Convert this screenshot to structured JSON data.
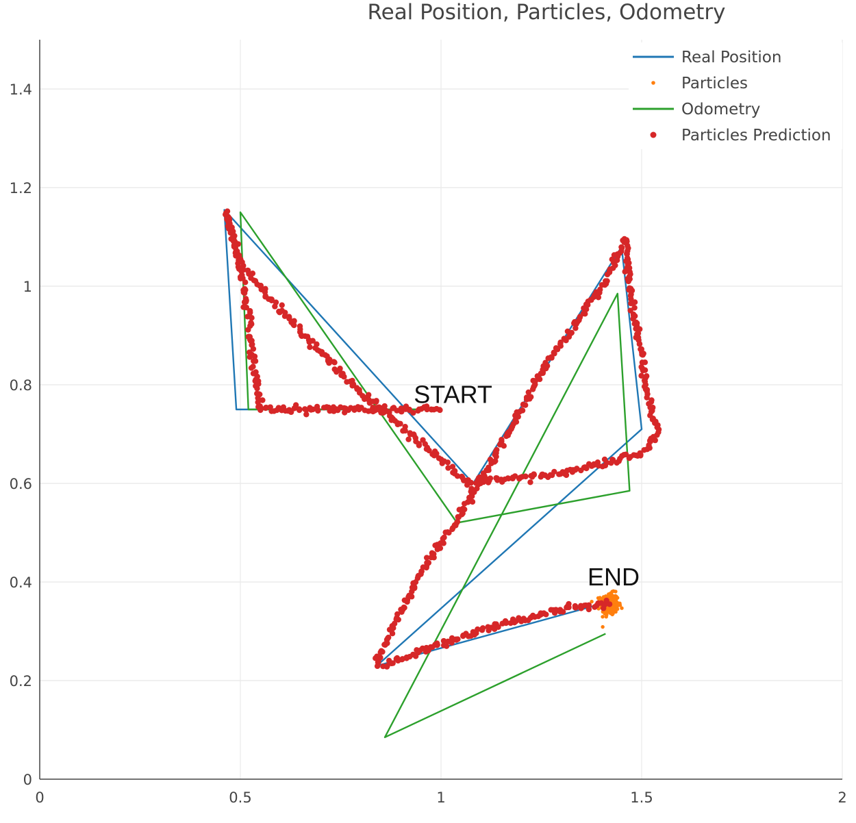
{
  "chart_data": {
    "type": "scatter",
    "title": "Real Position, Particles, Odometry",
    "xlabel": "",
    "ylabel": "",
    "xlim": [
      0,
      2
    ],
    "ylim": [
      0,
      1.5
    ],
    "x_ticks": [
      "0",
      "0.5",
      "1",
      "1.5",
      "2"
    ],
    "y_ticks": [
      "0",
      "0.2",
      "0.4",
      "0.6",
      "0.8",
      "1",
      "1.2",
      "1.4"
    ],
    "grid": true,
    "legend_position": "top-right",
    "annotations": [
      {
        "text": "START",
        "x": 1.03,
        "y": 0.78
      },
      {
        "text": "END",
        "x": 1.43,
        "y": 0.41
      }
    ],
    "series": [
      {
        "name": "Real Position",
        "mode": "lines",
        "color": "#1f77b4",
        "x": [
          1.0,
          0.5,
          0.49,
          0.46,
          1.08,
          1.45,
          1.5,
          0.84,
          1.42
        ],
        "y": [
          0.75,
          0.75,
          0.75,
          1.155,
          0.6,
          1.08,
          0.71,
          0.23,
          0.36
        ]
      },
      {
        "name": "Particles",
        "mode": "markers",
        "color": "#ff7f0e",
        "center": [
          1.42,
          0.355
        ],
        "spread": [
          0.02,
          0.02
        ],
        "count": 320
      },
      {
        "name": "Odometry",
        "mode": "lines",
        "color": "#2ca02c",
        "x": [
          1.0,
          0.52,
          0.5,
          1.04,
          1.47,
          1.44,
          0.86,
          1.41
        ],
        "y": [
          0.75,
          0.75,
          1.15,
          0.52,
          0.585,
          0.985,
          0.085,
          0.295
        ]
      },
      {
        "name": "Particles Prediction",
        "mode": "markers",
        "color": "#d62728",
        "x": [
          1.0,
          0.7,
          0.55,
          0.54,
          0.51,
          0.465,
          0.5,
          0.6,
          0.78,
          1.07,
          1.3,
          1.5,
          1.54,
          1.51,
          1.47,
          1.46,
          1.41,
          1.27,
          1.06,
          0.95,
          0.84,
          0.85,
          1.13,
          1.32,
          1.42
        ],
        "y": [
          0.75,
          0.75,
          0.75,
          0.8,
          1.0,
          1.15,
          1.05,
          0.95,
          0.8,
          0.6,
          0.62,
          0.66,
          0.705,
          0.8,
          1.0,
          1.1,
          1.01,
          0.85,
          0.55,
          0.42,
          0.24,
          0.23,
          0.31,
          0.35,
          0.355
        ]
      }
    ]
  }
}
